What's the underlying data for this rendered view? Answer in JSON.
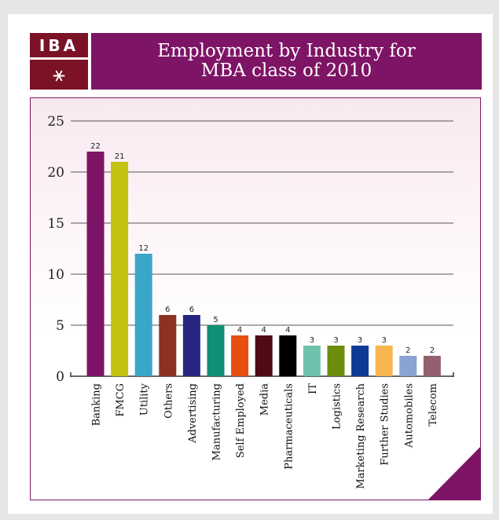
{
  "header": {
    "logo_text": "IBA",
    "logo_emblem": "iba-emblem-icon",
    "title": "Employment by Industry for MBA class of 2010"
  },
  "colors": {
    "header_bg": "#7e1465",
    "logo_bg": "#7b1226",
    "page_bg": "#e6e6e6"
  },
  "chart_data": {
    "type": "bar",
    "title": "Employment by Industry for MBA class of 2010",
    "xlabel": "",
    "ylabel": "",
    "ylim": [
      0,
      25
    ],
    "yticks": [
      0,
      5,
      10,
      15,
      20,
      25
    ],
    "grid": true,
    "legend": "none",
    "categories": [
      "Banking",
      "FMCG",
      "Utility",
      "Others",
      "Advertising",
      "Manufacturing",
      "Self Employed",
      "Media",
      "Pharmaceuticals",
      "IT",
      "Logistics",
      "Marketing Research",
      "Further Studies",
      "Automobiles",
      "Telecom"
    ],
    "values": [
      22,
      21,
      12,
      6,
      6,
      5,
      4,
      4,
      4,
      3,
      3,
      3,
      3,
      2,
      2
    ],
    "bar_colors": [
      "#7e1465",
      "#c2c210",
      "#3aa6c8",
      "#8b3223",
      "#262680",
      "#0f8f73",
      "#e84e10",
      "#4f0a16",
      "#000000",
      "#6fc2ad",
      "#6b8c0d",
      "#0d3a94",
      "#f7b64f",
      "#8aa3d2",
      "#946070"
    ]
  }
}
